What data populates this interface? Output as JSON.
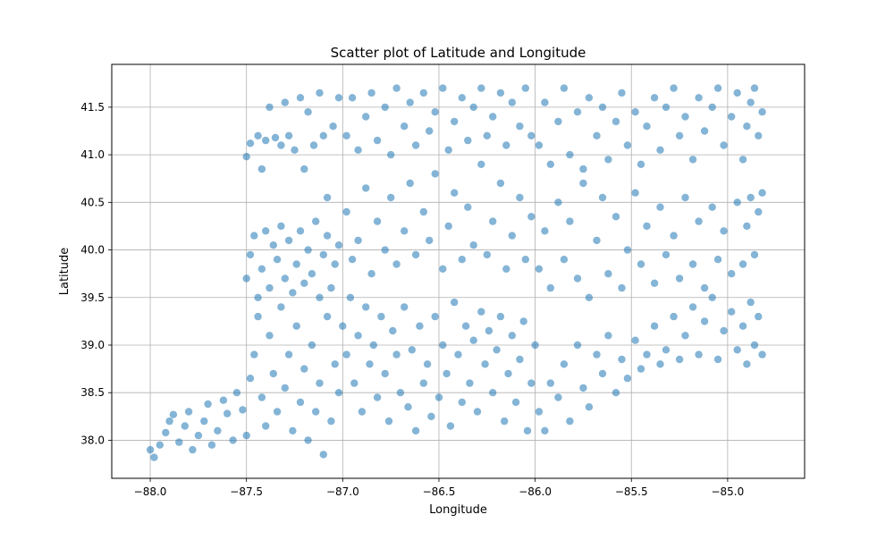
{
  "chart_data": {
    "type": "scatter",
    "title": "Scatter plot of Latitude and Longitude",
    "xlabel": "Longitude",
    "ylabel": "Latitude",
    "xlim": [
      -88.2,
      -84.6
    ],
    "ylim": [
      37.6,
      41.95
    ],
    "xticks": [
      -88.0,
      -87.5,
      -87.0,
      -86.5,
      -86.0,
      -85.5,
      -85.0
    ],
    "xtick_labels": [
      "−88.0",
      "−87.5",
      "−87.0",
      "−86.5",
      "−86.0",
      "−85.5",
      "−85.0"
    ],
    "yticks": [
      38.0,
      38.5,
      39.0,
      39.5,
      40.0,
      40.5,
      41.0,
      41.5
    ],
    "ytick_labels": [
      "38.0",
      "38.5",
      "39.0",
      "39.5",
      "40.0",
      "40.5",
      "41.0",
      "41.5"
    ],
    "grid": true,
    "marker_color": "#1f77b4",
    "marker_alpha": 0.55,
    "points": [
      [
        -88.0,
        37.9
      ],
      [
        -87.98,
        37.82
      ],
      [
        -87.95,
        37.95
      ],
      [
        -87.92,
        38.08
      ],
      [
        -87.9,
        38.2
      ],
      [
        -87.88,
        38.27
      ],
      [
        -87.85,
        37.98
      ],
      [
        -87.82,
        38.15
      ],
      [
        -87.8,
        38.3
      ],
      [
        -87.78,
        37.9
      ],
      [
        -87.75,
        38.05
      ],
      [
        -87.72,
        38.2
      ],
      [
        -87.7,
        38.38
      ],
      [
        -87.68,
        37.95
      ],
      [
        -87.65,
        38.1
      ],
      [
        -87.62,
        38.42
      ],
      [
        -87.6,
        38.28
      ],
      [
        -87.57,
        38.0
      ],
      [
        -87.55,
        38.5
      ],
      [
        -87.52,
        38.32
      ],
      [
        -87.5,
        38.05
      ],
      [
        -87.48,
        38.65
      ],
      [
        -87.46,
        38.9
      ],
      [
        -87.44,
        39.3
      ],
      [
        -87.42,
        38.45
      ],
      [
        -87.4,
        38.15
      ],
      [
        -87.38,
        39.1
      ],
      [
        -87.36,
        38.7
      ],
      [
        -87.34,
        38.3
      ],
      [
        -87.32,
        39.4
      ],
      [
        -87.3,
        38.55
      ],
      [
        -87.28,
        38.9
      ],
      [
        -87.26,
        38.1
      ],
      [
        -87.24,
        39.2
      ],
      [
        -87.22,
        38.4
      ],
      [
        -87.2,
        38.75
      ],
      [
        -87.18,
        38.0
      ],
      [
        -87.16,
        39.0
      ],
      [
        -87.14,
        38.3
      ],
      [
        -87.12,
        38.6
      ],
      [
        -87.1,
        37.85
      ],
      [
        -87.08,
        39.3
      ],
      [
        -87.06,
        38.2
      ],
      [
        -87.04,
        38.8
      ],
      [
        -87.02,
        38.5
      ],
      [
        -87.5,
        39.7
      ],
      [
        -87.48,
        39.95
      ],
      [
        -87.46,
        40.15
      ],
      [
        -87.44,
        39.5
      ],
      [
        -87.42,
        39.8
      ],
      [
        -87.4,
        40.2
      ],
      [
        -87.38,
        39.6
      ],
      [
        -87.36,
        40.05
      ],
      [
        -87.34,
        39.9
      ],
      [
        -87.32,
        40.25
      ],
      [
        -87.3,
        39.7
      ],
      [
        -87.28,
        40.1
      ],
      [
        -87.26,
        39.55
      ],
      [
        -87.24,
        39.85
      ],
      [
        -87.22,
        40.2
      ],
      [
        -87.2,
        39.65
      ],
      [
        -87.18,
        40.0
      ],
      [
        -87.16,
        39.75
      ],
      [
        -87.14,
        40.3
      ],
      [
        -87.12,
        39.5
      ],
      [
        -87.1,
        39.95
      ],
      [
        -87.08,
        40.15
      ],
      [
        -87.06,
        39.6
      ],
      [
        -87.04,
        39.85
      ],
      [
        -87.02,
        40.05
      ],
      [
        -87.5,
        40.98
      ],
      [
        -87.48,
        41.12
      ],
      [
        -87.44,
        41.2
      ],
      [
        -87.42,
        40.85
      ],
      [
        -87.4,
        41.15
      ],
      [
        -87.38,
        41.5
      ],
      [
        -87.35,
        41.18
      ],
      [
        -87.32,
        41.1
      ],
      [
        -87.3,
        41.55
      ],
      [
        -87.28,
        41.2
      ],
      [
        -87.25,
        41.05
      ],
      [
        -87.22,
        41.6
      ],
      [
        -87.2,
        40.85
      ],
      [
        -87.18,
        41.45
      ],
      [
        -87.15,
        41.1
      ],
      [
        -87.12,
        41.65
      ],
      [
        -87.1,
        41.2
      ],
      [
        -87.08,
        40.55
      ],
      [
        -87.05,
        41.3
      ],
      [
        -87.02,
        41.6
      ],
      [
        -87.0,
        39.2
      ],
      [
        -86.98,
        38.9
      ],
      [
        -86.96,
        39.5
      ],
      [
        -86.94,
        38.6
      ],
      [
        -86.92,
        39.1
      ],
      [
        -86.9,
        38.3
      ],
      [
        -86.88,
        39.4
      ],
      [
        -86.86,
        38.8
      ],
      [
        -86.84,
        39.0
      ],
      [
        -86.82,
        38.45
      ],
      [
        -86.8,
        39.3
      ],
      [
        -86.78,
        38.7
      ],
      [
        -86.76,
        38.2
      ],
      [
        -86.74,
        39.15
      ],
      [
        -86.72,
        38.9
      ],
      [
        -86.7,
        38.5
      ],
      [
        -86.68,
        39.4
      ],
      [
        -86.66,
        38.35
      ],
      [
        -86.64,
        38.95
      ],
      [
        -86.62,
        38.1
      ],
      [
        -86.6,
        39.2
      ],
      [
        -86.58,
        38.6
      ],
      [
        -86.56,
        38.8
      ],
      [
        -86.54,
        38.25
      ],
      [
        -86.52,
        39.3
      ],
      [
        -86.5,
        38.45
      ],
      [
        -86.48,
        39.0
      ],
      [
        -86.46,
        38.7
      ],
      [
        -86.44,
        38.15
      ],
      [
        -86.42,
        39.45
      ],
      [
        -86.4,
        38.9
      ],
      [
        -86.38,
        38.4
      ],
      [
        -86.36,
        39.2
      ],
      [
        -86.34,
        38.6
      ],
      [
        -86.32,
        39.05
      ],
      [
        -86.3,
        38.3
      ],
      [
        -86.28,
        39.35
      ],
      [
        -86.26,
        38.8
      ],
      [
        -86.24,
        39.15
      ],
      [
        -86.22,
        38.5
      ],
      [
        -86.2,
        38.95
      ],
      [
        -86.18,
        39.3
      ],
      [
        -86.16,
        38.2
      ],
      [
        -86.14,
        38.7
      ],
      [
        -86.12,
        39.1
      ],
      [
        -86.1,
        38.4
      ],
      [
        -86.08,
        38.85
      ],
      [
        -86.06,
        39.25
      ],
      [
        -86.04,
        38.1
      ],
      [
        -86.02,
        38.6
      ],
      [
        -86.0,
        39.0
      ],
      [
        -86.98,
        40.4
      ],
      [
        -86.95,
        39.9
      ],
      [
        -86.92,
        40.1
      ],
      [
        -86.88,
        40.65
      ],
      [
        -86.85,
        39.75
      ],
      [
        -86.82,
        40.3
      ],
      [
        -86.78,
        40.0
      ],
      [
        -86.75,
        40.55
      ],
      [
        -86.72,
        39.85
      ],
      [
        -86.68,
        40.2
      ],
      [
        -86.65,
        40.7
      ],
      [
        -86.62,
        39.95
      ],
      [
        -86.58,
        40.4
      ],
      [
        -86.55,
        40.1
      ],
      [
        -86.52,
        40.8
      ],
      [
        -86.48,
        39.8
      ],
      [
        -86.45,
        40.25
      ],
      [
        -86.42,
        40.6
      ],
      [
        -86.38,
        39.9
      ],
      [
        -86.35,
        40.45
      ],
      [
        -86.32,
        40.05
      ],
      [
        -86.28,
        40.9
      ],
      [
        -86.25,
        39.95
      ],
      [
        -86.22,
        40.3
      ],
      [
        -86.18,
        40.7
      ],
      [
        -86.15,
        39.8
      ],
      [
        -86.12,
        40.15
      ],
      [
        -86.08,
        40.55
      ],
      [
        -86.05,
        39.9
      ],
      [
        -86.02,
        40.35
      ],
      [
        -86.98,
        41.2
      ],
      [
        -86.95,
        41.6
      ],
      [
        -86.92,
        41.05
      ],
      [
        -86.88,
        41.4
      ],
      [
        -86.85,
        41.65
      ],
      [
        -86.82,
        41.15
      ],
      [
        -86.78,
        41.5
      ],
      [
        -86.75,
        41.0
      ],
      [
        -86.72,
        41.7
      ],
      [
        -86.68,
        41.3
      ],
      [
        -86.65,
        41.55
      ],
      [
        -86.62,
        41.1
      ],
      [
        -86.58,
        41.65
      ],
      [
        -86.55,
        41.25
      ],
      [
        -86.52,
        41.45
      ],
      [
        -86.48,
        41.7
      ],
      [
        -86.45,
        41.05
      ],
      [
        -86.42,
        41.35
      ],
      [
        -86.38,
        41.6
      ],
      [
        -86.35,
        41.15
      ],
      [
        -86.32,
        41.5
      ],
      [
        -86.28,
        41.7
      ],
      [
        -86.25,
        41.2
      ],
      [
        -86.22,
        41.4
      ],
      [
        -86.18,
        41.65
      ],
      [
        -86.15,
        41.1
      ],
      [
        -86.12,
        41.55
      ],
      [
        -86.08,
        41.3
      ],
      [
        -86.05,
        41.7
      ],
      [
        -86.02,
        41.2
      ],
      [
        -85.98,
        38.3
      ],
      [
        -85.95,
        38.1
      ],
      [
        -85.92,
        38.6
      ],
      [
        -85.88,
        38.45
      ],
      [
        -85.85,
        38.8
      ],
      [
        -85.82,
        38.2
      ],
      [
        -85.78,
        39.0
      ],
      [
        -85.75,
        38.55
      ],
      [
        -85.72,
        38.35
      ],
      [
        -85.68,
        38.9
      ],
      [
        -85.65,
        38.7
      ],
      [
        -85.62,
        39.1
      ],
      [
        -85.58,
        38.5
      ],
      [
        -85.55,
        38.85
      ],
      [
        -85.52,
        38.65
      ],
      [
        -85.48,
        39.05
      ],
      [
        -85.45,
        38.75
      ],
      [
        -85.42,
        38.9
      ],
      [
        -85.38,
        39.2
      ],
      [
        -85.35,
        38.8
      ],
      [
        -85.32,
        38.95
      ],
      [
        -85.28,
        39.3
      ],
      [
        -85.25,
        38.85
      ],
      [
        -85.22,
        39.1
      ],
      [
        -85.18,
        39.4
      ],
      [
        -85.15,
        38.9
      ],
      [
        -85.12,
        39.25
      ],
      [
        -85.08,
        39.5
      ],
      [
        -85.05,
        38.85
      ],
      [
        -85.02,
        39.15
      ],
      [
        -84.98,
        39.35
      ],
      [
        -84.95,
        38.95
      ],
      [
        -84.92,
        39.2
      ],
      [
        -84.9,
        38.8
      ],
      [
        -84.88,
        39.45
      ],
      [
        -84.86,
        39.0
      ],
      [
        -84.84,
        39.3
      ],
      [
        -84.82,
        38.9
      ],
      [
        -85.98,
        39.8
      ],
      [
        -85.95,
        40.2
      ],
      [
        -85.92,
        39.6
      ],
      [
        -85.88,
        40.5
      ],
      [
        -85.85,
        39.9
      ],
      [
        -85.82,
        40.3
      ],
      [
        -85.78,
        39.7
      ],
      [
        -85.75,
        40.7
      ],
      [
        -85.72,
        39.5
      ],
      [
        -85.68,
        40.1
      ],
      [
        -85.65,
        40.55
      ],
      [
        -85.62,
        39.75
      ],
      [
        -85.58,
        40.35
      ],
      [
        -85.55,
        39.6
      ],
      [
        -85.52,
        40.0
      ],
      [
        -85.48,
        40.6
      ],
      [
        -85.45,
        39.85
      ],
      [
        -85.42,
        40.25
      ],
      [
        -85.38,
        39.65
      ],
      [
        -85.35,
        40.45
      ],
      [
        -85.32,
        39.95
      ],
      [
        -85.28,
        40.15
      ],
      [
        -85.25,
        39.7
      ],
      [
        -85.22,
        40.55
      ],
      [
        -85.18,
        39.85
      ],
      [
        -85.15,
        40.3
      ],
      [
        -85.12,
        39.6
      ],
      [
        -85.08,
        40.45
      ],
      [
        -85.05,
        39.9
      ],
      [
        -85.02,
        40.2
      ],
      [
        -84.98,
        39.75
      ],
      [
        -84.95,
        40.5
      ],
      [
        -84.92,
        39.85
      ],
      [
        -84.9,
        40.25
      ],
      [
        -84.88,
        40.55
      ],
      [
        -84.86,
        39.95
      ],
      [
        -84.84,
        40.4
      ],
      [
        -84.82,
        40.6
      ],
      [
        -85.98,
        41.1
      ],
      [
        -85.95,
        41.55
      ],
      [
        -85.92,
        40.9
      ],
      [
        -85.88,
        41.35
      ],
      [
        -85.85,
        41.7
      ],
      [
        -85.82,
        41.0
      ],
      [
        -85.78,
        41.45
      ],
      [
        -85.75,
        40.85
      ],
      [
        -85.72,
        41.6
      ],
      [
        -85.68,
        41.2
      ],
      [
        -85.65,
        41.5
      ],
      [
        -85.62,
        40.95
      ],
      [
        -85.58,
        41.35
      ],
      [
        -85.55,
        41.65
      ],
      [
        -85.52,
        41.1
      ],
      [
        -85.48,
        41.45
      ],
      [
        -85.45,
        40.9
      ],
      [
        -85.42,
        41.3
      ],
      [
        -85.38,
        41.6
      ],
      [
        -85.35,
        41.05
      ],
      [
        -85.32,
        41.5
      ],
      [
        -85.28,
        41.7
      ],
      [
        -85.25,
        41.2
      ],
      [
        -85.22,
        41.4
      ],
      [
        -85.18,
        40.95
      ],
      [
        -85.15,
        41.6
      ],
      [
        -85.12,
        41.25
      ],
      [
        -85.08,
        41.5
      ],
      [
        -85.05,
        41.7
      ],
      [
        -85.02,
        41.1
      ],
      [
        -84.98,
        41.4
      ],
      [
        -84.95,
        41.65
      ],
      [
        -84.92,
        40.95
      ],
      [
        -84.9,
        41.3
      ],
      [
        -84.88,
        41.55
      ],
      [
        -84.86,
        41.7
      ],
      [
        -84.84,
        41.2
      ],
      [
        -84.82,
        41.45
      ]
    ]
  }
}
